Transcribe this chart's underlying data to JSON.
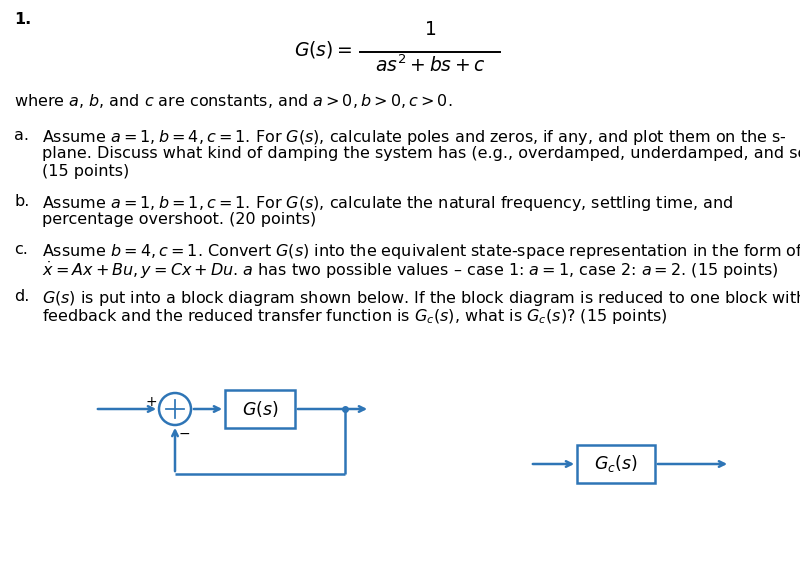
{
  "bg_color": "#ffffff",
  "text_color": "#000000",
  "blue_color": "#2e75b6",
  "fig_width": 8.0,
  "fig_height": 5.84,
  "dpi": 100,
  "item_number": "1.",
  "where_text": "where $a$, $b$, and $c$ are constants, and $a > 0, b > 0, c > 0.$",
  "part_a_line1": "Assume $a = 1, b = 4, c = 1$. For $G(s)$, calculate poles and zeros, if any, and plot them on the s-",
  "part_a_line2": "plane. Discuss what kind of damping the system has (e.g., overdamped, underdamped, and so on).",
  "part_a_line3": "(15 points)",
  "part_b_line1": "Assume $a = 1, b = 1, c = 1$. For $G(s)$, calculate the natural frequency, settling time, and",
  "part_b_line2": "percentage overshoot. (20 points)",
  "part_c_line1": "Assume $b = 4, c = 1$. Convert $G(s)$ into the equivalent state-space representation in the form of",
  "part_c_line2": "$\\dot{x} = Ax + Bu, y = Cx + Du$. $a$ has two possible values – case 1: $a = 1$, case 2: $a = 2$. (15 points)",
  "part_d_line1": "$G(s)$ is put into a block diagram shown below. If the block diagram is reduced to one block without",
  "part_d_line2": "feedback and the reduced transfer function is $G_c(s)$, what is $G_c(s)$? (15 points)",
  "fs": 11.5,
  "lw": 1.8
}
